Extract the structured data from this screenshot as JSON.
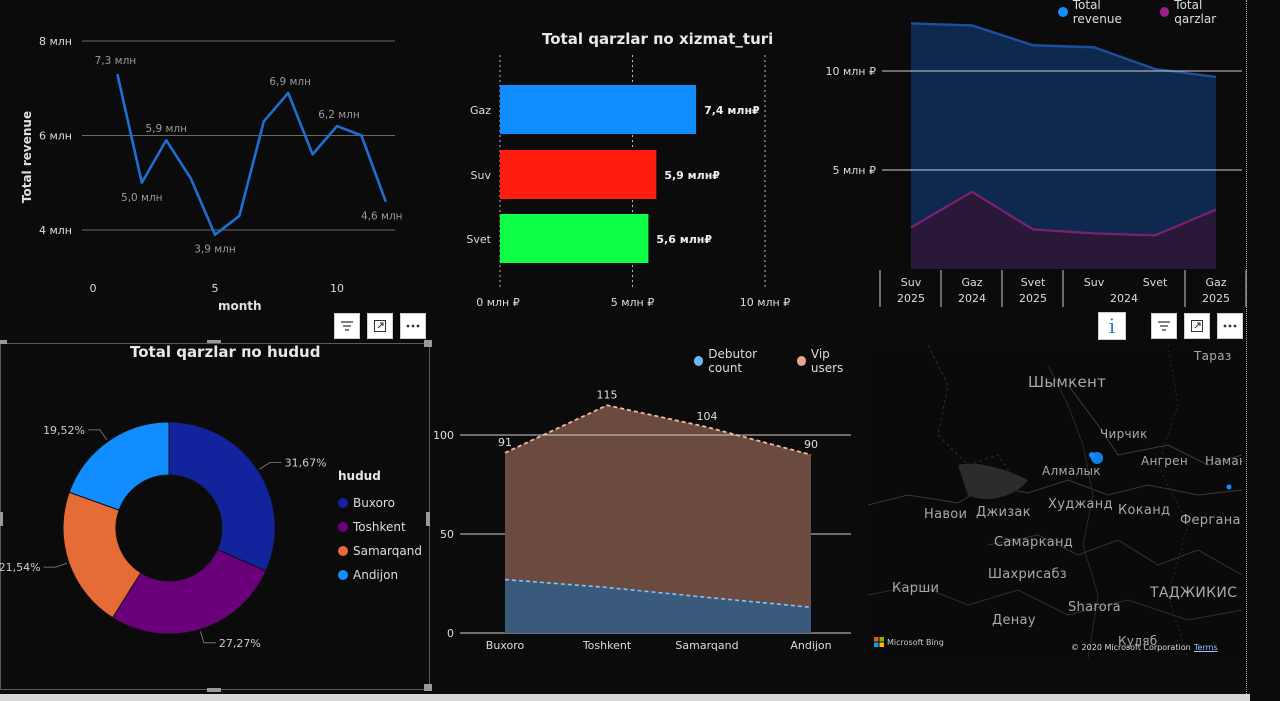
{
  "line_chart": {
    "xlabel": "month",
    "ylabel": "Total revenue",
    "y_ticks": [
      "8 млн",
      "6 млн",
      "4 млн"
    ],
    "x_ticks": [
      "0",
      "5",
      "10"
    ],
    "labels": [
      "7,3 млн",
      "5,0 млн",
      "5,9 млн",
      "3,9 млн",
      "6,9 млн",
      "6,2 млн",
      "4,6 млн"
    ]
  },
  "bar_chart": {
    "title": "Total qarzlar по xizmat_turi",
    "x_ticks": [
      "0 млн ₽",
      "5 млн ₽",
      "10 млн ₽"
    ],
    "bars": [
      {
        "label": "Gaz",
        "value_label": "7,4 млн₽",
        "color": "#118dff"
      },
      {
        "label": "Suv",
        "value_label": "5,9 млн₽",
        "color": "#ff1d0f"
      },
      {
        "label": "Svet",
        "value_label": "5,6 млн₽",
        "color": "#0dff46"
      }
    ]
  },
  "area_chart_top": {
    "legend": [
      {
        "label": "Total revenue",
        "color": "#118dff"
      },
      {
        "label": "Total qarzlar",
        "color": "#9b1c8c"
      }
    ],
    "y_ticks": [
      "10 млн ₽",
      "5 млн ₽"
    ],
    "x_labels": [
      {
        "service": "Suv",
        "year": "2025"
      },
      {
        "service": "Gaz",
        "year": "2024"
      },
      {
        "service": "Svet",
        "year": "2025"
      },
      {
        "service": "Suv",
        "year": ""
      },
      {
        "service": "Svet",
        "year": ""
      },
      {
        "service": "Gaz",
        "year": "2025"
      }
    ],
    "group_year": "2024"
  },
  "donut_chart": {
    "title": "Total qarzlar по hudud",
    "legend_title": "hudud",
    "slices": [
      {
        "label": "Buxoro",
        "pct": "31,67%",
        "color": "#12239e"
      },
      {
        "label": "Toshkent",
        "pct": "27,27%",
        "color": "#6b007b"
      },
      {
        "label": "Samarqand",
        "pct": "21,54%",
        "color": "#e66c37"
      },
      {
        "label": "Andijon",
        "pct": "19,52%",
        "color": "#118dff"
      }
    ]
  },
  "area_chart_bottom": {
    "legend": [
      {
        "label": "Debutor count",
        "color": "#6ab8f7"
      },
      {
        "label": "Vip users",
        "color": "#e7a589"
      }
    ],
    "y_ticks": [
      "100",
      "50",
      "0"
    ],
    "categories": [
      "Buxoro",
      "Toshkent",
      "Samarqand",
      "Andijon"
    ],
    "vip_labels": [
      "91",
      "115",
      "104",
      "90"
    ]
  },
  "map": {
    "cities": [
      "Шымкент",
      "Тараз",
      "Чирчик",
      "Ангрен",
      "Наманган",
      "Алмалык",
      "Навои",
      "Джизак",
      "Худжанд",
      "Коканд",
      "Фергана",
      "Самарканд",
      "Карши",
      "Шахрисабз",
      "Sharora",
      "Денау",
      "ТАДЖИКИС",
      "Куляб"
    ],
    "bing": "Microsoft Bing",
    "copyright": "© 2020 Microsoft Corporation",
    "terms": "Terms"
  },
  "chart_data": [
    {
      "type": "line",
      "xlabel": "month",
      "ylabel": "Total revenue",
      "x": [
        1,
        2,
        3,
        4,
        5,
        6,
        7,
        8,
        9,
        10,
        11,
        12
      ],
      "values": [
        7.3,
        5.0,
        5.9,
        5.1,
        3.9,
        4.3,
        6.3,
        6.9,
        5.6,
        6.2,
        6.0,
        4.6
      ],
      "unit": "млн",
      "ylim": [
        4,
        8
      ],
      "xlim": [
        0,
        12
      ]
    },
    {
      "type": "bar",
      "title": "Total qarzlar по xizmat_turi",
      "categories": [
        "Gaz",
        "Suv",
        "Svet"
      ],
      "values": [
        7.4,
        5.9,
        5.6
      ],
      "unit": "млн ₽",
      "xlim": [
        0,
        10
      ]
    },
    {
      "type": "area",
      "categories": [
        "Suv 2025",
        "Gaz 2024",
        "Svet 2025",
        "Suv 2024",
        "Svet 2024",
        "Gaz 2025"
      ],
      "series": [
        {
          "name": "Total revenue",
          "values": [
            12.4,
            12.3,
            11.3,
            11.2,
            10.1,
            9.7
          ]
        },
        {
          "name": "Total qarzlar",
          "values": [
            2.1,
            3.9,
            2.0,
            1.8,
            1.7,
            3.0
          ]
        }
      ],
      "unit": "млн ₽",
      "ylim": [
        0,
        12.8
      ]
    },
    {
      "type": "pie",
      "title": "Total qarzlar по hudud",
      "categories": [
        "Buxoro",
        "Toshkent",
        "Samarqand",
        "Andijon"
      ],
      "values": [
        31.67,
        27.27,
        21.54,
        19.52
      ]
    },
    {
      "type": "area",
      "categories": [
        "Buxoro",
        "Toshkent",
        "Samarqand",
        "Andijon"
      ],
      "series": [
        {
          "name": "Debutor count",
          "values": [
            27,
            23,
            18,
            13
          ]
        },
        {
          "name": "Vip users",
          "values": [
            91,
            115,
            104,
            90
          ]
        }
      ],
      "ylim": [
        0,
        120
      ]
    }
  ]
}
